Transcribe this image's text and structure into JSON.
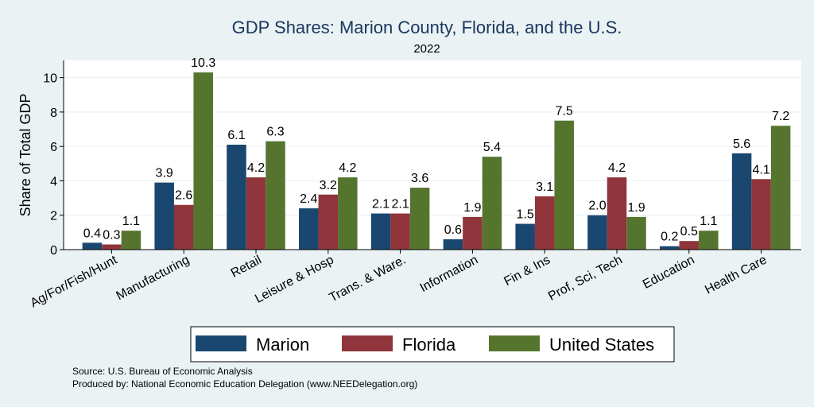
{
  "chart_data": {
    "type": "bar",
    "title": "GDP Shares: Marion County, Florida, and the U.S.",
    "subtitle": "2022",
    "xlabel": "",
    "ylabel": "Share of Total GDP",
    "ylim": [
      0,
      11
    ],
    "yticks": [
      0,
      2,
      4,
      6,
      8,
      10
    ],
    "grid": true,
    "legend_position": "bottom",
    "categories": [
      "Ag/For/Fish/Hunt",
      "Manufacturing",
      "Retail",
      "Leisure & Hosp",
      "Trans. & Ware.",
      "Information",
      "Fin & Ins",
      "Prof, Sci, Tech",
      "Education",
      "Health Care"
    ],
    "series": [
      {
        "name": "Marion",
        "color": "#1a476f",
        "values": [
          0.4,
          3.9,
          6.1,
          2.4,
          2.1,
          0.6,
          1.5,
          2.0,
          0.2,
          5.6
        ]
      },
      {
        "name": "Florida",
        "color": "#90353b",
        "values": [
          0.3,
          2.6,
          4.2,
          3.2,
          2.1,
          1.9,
          3.1,
          4.2,
          0.5,
          4.1
        ]
      },
      {
        "name": "United States",
        "color": "#55752f",
        "values": [
          1.1,
          10.3,
          6.3,
          4.2,
          3.6,
          5.4,
          7.5,
          1.9,
          1.1,
          7.2
        ]
      }
    ]
  },
  "notes": {
    "source": "Source: U.S. Bureau of Economic Analysis",
    "produced_by": "Produced by: National Economic Education Delegation (www.NEEDelegation.org)"
  }
}
